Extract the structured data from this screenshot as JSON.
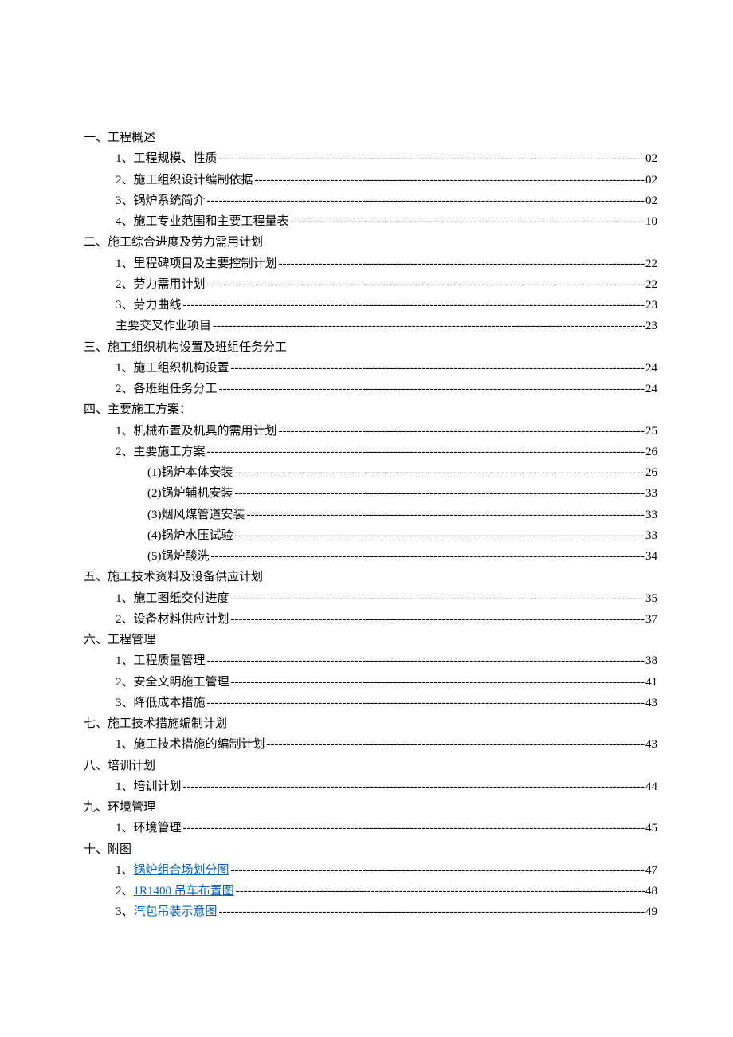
{
  "colors": {
    "text": "#000000",
    "link": "#0563c1",
    "background": "#ffffff"
  },
  "typography": {
    "font_family": "SimSun",
    "font_size_pt": 11,
    "line_height": 1.75
  },
  "sections": {
    "s1": {
      "title": "一、工程概述",
      "items": {
        "i1": {
          "label": "1、工程规模、性质",
          "page": "02"
        },
        "i2": {
          "label": "2、施工组织设计编制依据",
          "page": "02"
        },
        "i3": {
          "label": "3、锅炉系统简介",
          "page": "02"
        },
        "i4": {
          "label": "4、施工专业范围和主要工程量表",
          "page": "10"
        }
      }
    },
    "s2": {
      "title": "二、施工综合进度及劳力需用计划",
      "items": {
        "i1": {
          "label": "1、里程碑项目及主要控制计划",
          "page": "22"
        },
        "i2": {
          "label": "2、劳力需用计划",
          "page": "22"
        },
        "i3": {
          "label": "3、劳力曲线",
          "page": "23"
        },
        "i4": {
          "label": "主要交叉作业项目",
          "page": "23"
        }
      }
    },
    "s3": {
      "title": "三、施工组织机构设置及班组任务分工",
      "items": {
        "i1": {
          "label": "1、施工组织机构设置",
          "page": "24"
        },
        "i2": {
          "label": "2、各班组任务分工",
          "page": "24"
        }
      }
    },
    "s4": {
      "title": "四、主要施工方案：",
      "items": {
        "i1": {
          "label": "1、机械布置及机具的需用计划",
          "page": "25"
        },
        "i2": {
          "label": "2、主要施工方案",
          "page": "26"
        }
      },
      "subitems": {
        "s1": {
          "label": "(1)锅炉本体安装",
          "page": "26"
        },
        "s2": {
          "label": "(2)锅炉辅机安装",
          "page": "33"
        },
        "s3": {
          "label": "(3)烟风煤管道安装",
          "page": "33"
        },
        "s4": {
          "label": "(4)锅炉水压试验",
          "page": "33"
        },
        "s5": {
          "label": "(5)锅炉酸洗",
          "page": "34"
        }
      }
    },
    "s5": {
      "title": "五、施工技术资料及设备供应计划",
      "items": {
        "i1": {
          "label": "1、施工图纸交付进度",
          "page": "35"
        },
        "i2": {
          "label": "2、设备材料供应计划",
          "page": "37"
        }
      }
    },
    "s6": {
      "title": "六、工程管理",
      "items": {
        "i1": {
          "label": "1、工程质量管理",
          "page": "38"
        },
        "i2": {
          "label": "2、安全文明施工管理",
          "page": "41"
        },
        "i3": {
          "label": "3、降低成本措施",
          "page": "43"
        }
      }
    },
    "s7": {
      "title": "七、施工技术措施编制计划",
      "items": {
        "i1": {
          "label": "1、施工技术措施的编制计划",
          "page": "43"
        }
      }
    },
    "s8": {
      "title": "八、培训计划",
      "items": {
        "i1": {
          "label": "1、培训计划",
          "page": "44"
        }
      }
    },
    "s9": {
      "title": "九、环境管理",
      "items": {
        "i1": {
          "label": "1、环境管理",
          "page": "45"
        }
      }
    },
    "s10": {
      "title": "十、附图",
      "items": {
        "i1": {
          "prefix": "1、",
          "link_text": "锅炉组合场划分图",
          "page": "47",
          "link": true,
          "underline": true
        },
        "i2": {
          "prefix": "2、",
          "link_text": "1R1400 吊车布置图",
          "page": "48",
          "link": true,
          "underline": true
        },
        "i3": {
          "prefix": "3、",
          "link_text": "汽包吊装示意图",
          "page": "49",
          "link": true,
          "underline": false
        }
      }
    }
  }
}
